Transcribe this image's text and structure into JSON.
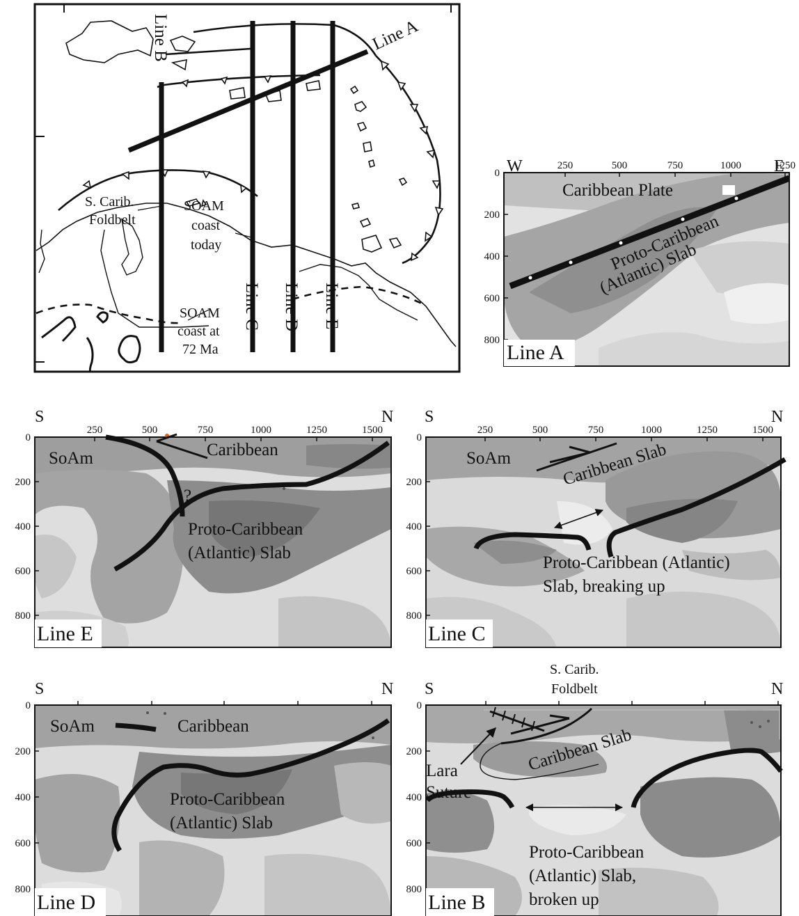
{
  "map": {
    "line_a": "Line A",
    "line_b": "Line B",
    "line_c": "Line C",
    "line_d": "Line D",
    "line_e": "Line E",
    "foldbelt_1": "S. Carib.",
    "foldbelt_2": "Foldbelt",
    "soam_today_1": "SOAM",
    "soam_today_2": "coast",
    "soam_today_3": "today",
    "soam_72_1": "SOAM",
    "soam_72_2": "coast at",
    "soam_72_3": "72 Ma"
  },
  "panel_a": {
    "west": "W",
    "east": "E",
    "x_ticks": [
      "250",
      "500",
      "750",
      "1000",
      "1250"
    ],
    "y_ticks": [
      "0",
      "200",
      "400",
      "600",
      "800"
    ],
    "plate_label": "Caribbean Plate",
    "slab_1": "Proto-Caribbean",
    "slab_2": "(Atlantic) Slab",
    "title": "Line A"
  },
  "panel_e": {
    "south": "S",
    "north": "N",
    "x_ticks": [
      "250",
      "500",
      "750",
      "1000",
      "1250",
      "1500"
    ],
    "y_ticks": [
      "0",
      "200",
      "400",
      "600",
      "800"
    ],
    "soam": "SoAm",
    "caribbean": "Caribbean",
    "question": "?",
    "slab_1": "Proto-Caribbean",
    "slab_2": "(Atlantic) Slab",
    "title": "Line E"
  },
  "panel_c": {
    "south": "S",
    "north": "N",
    "x_ticks": [
      "250",
      "500",
      "750",
      "1000",
      "1250",
      "1500"
    ],
    "y_ticks": [
      "0",
      "200",
      "400",
      "600",
      "800"
    ],
    "soam": "SoAm",
    "carib_slab": "Caribbean Slab",
    "slab_1": "Proto-Caribbean (Atlantic)",
    "slab_2": "Slab, breaking up",
    "title": "Line C"
  },
  "panel_d": {
    "south": "S",
    "north": "N",
    "y_ticks": [
      "0",
      "200",
      "400",
      "600",
      "800"
    ],
    "soam": "SoAm",
    "caribbean": "Caribbean",
    "slab_1": "Proto-Caribbean",
    "slab_2": "(Atlantic) Slab",
    "title": "Line D"
  },
  "panel_b": {
    "south": "S",
    "north": "N",
    "y_ticks": [
      "0",
      "200",
      "400",
      "600",
      "800"
    ],
    "foldbelt_1": "S. Carib.",
    "foldbelt_2": "Foldbelt",
    "lara_1": "Lara",
    "lara_2": "Suture",
    "carib_slab": "Caribbean Slab",
    "slab_1": "Proto-Caribbean",
    "slab_2": "(Atlantic) Slab,",
    "slab_3": "broken up",
    "title": "Line B"
  },
  "colors": {
    "background": "#ffffff",
    "tomo_light": "#e2e2e2",
    "tomo_mid": "#c2c2c2",
    "tomo_dark": "#8f8f8f",
    "ink": "#111111"
  }
}
